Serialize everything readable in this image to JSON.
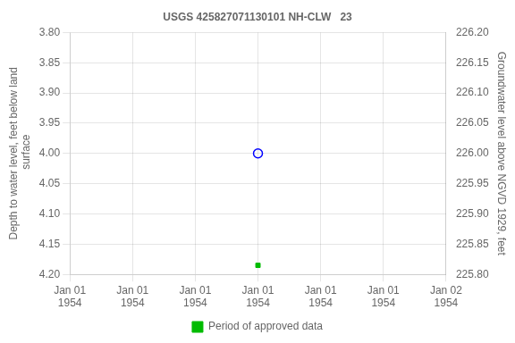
{
  "chart_data": {
    "type": "scatter",
    "title": "USGS 425827071130101 NH-CLW   23",
    "y_label": "Depth to water level, feet below land\n surface",
    "y2_label": "Groundwater level above NGVD 1929, feet",
    "categories": [
      "Jan 01\n1954",
      "Jan 01\n1954",
      "Jan 01\n1954",
      "Jan 01\n1954",
      "Jan 01\n1954",
      "Jan 01\n1954",
      "Jan 02\n1954"
    ],
    "series": [
      {
        "color": "blue",
        "marker": "circle",
        "values": [
          null,
          null,
          null,
          4.0,
          null,
          null,
          null
        ]
      },
      {
        "name": "Period of approved data",
        "color": "#00bb00",
        "marker": "square",
        "values": [
          null,
          null,
          null,
          4.185,
          null,
          null,
          null
        ]
      }
    ],
    "ylim": [
      4.2,
      3.8
    ],
    "yticks": [
      {
        "value": 3.8,
        "label": "3.80"
      },
      {
        "value": 3.85,
        "label": "3.85"
      },
      {
        "value": 3.9,
        "label": "3.90"
      },
      {
        "value": 3.95,
        "label": "3.95"
      },
      {
        "value": 4.0,
        "label": "4.00"
      },
      {
        "value": 4.05,
        "label": "4.05"
      },
      {
        "value": 4.1,
        "label": "4.10"
      },
      {
        "value": 4.15,
        "label": "4.15"
      },
      {
        "value": 4.2,
        "label": "4.20"
      }
    ],
    "y2lim": [
      225.8,
      226.2
    ],
    "y2ticks": [
      {
        "value": 225.8,
        "label": "225.80"
      },
      {
        "value": 225.85,
        "label": "225.85"
      },
      {
        "value": 225.9,
        "label": "225.90"
      },
      {
        "value": 225.95,
        "label": "225.95"
      },
      {
        "value": 226.0,
        "label": "226.00"
      },
      {
        "value": 226.05,
        "label": "226.05"
      },
      {
        "value": 226.1,
        "label": "226.10"
      },
      {
        "value": 226.15,
        "label": "226.15"
      },
      {
        "value": 226.2,
        "label": "226.20"
      }
    ],
    "grid": true,
    "legend": "bottom"
  }
}
